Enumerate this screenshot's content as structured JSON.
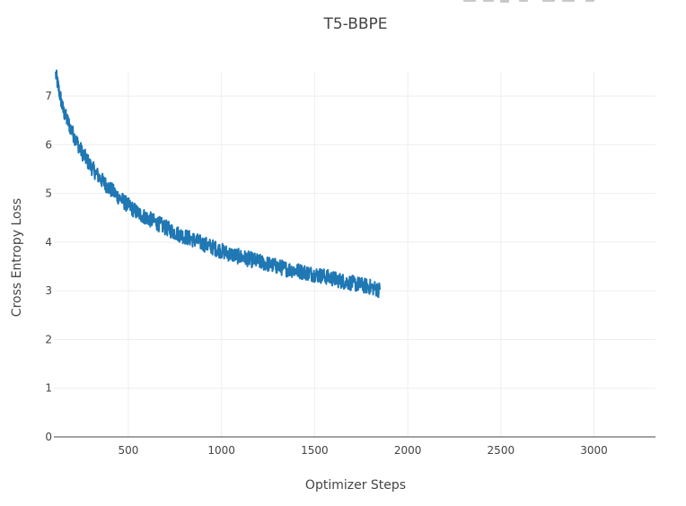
{
  "chart_data": {
    "type": "line",
    "title": "T5-BBPE",
    "xlabel": "Optimizer Steps",
    "ylabel": "Cross Entropy Loss",
    "xlim": [
      100,
      3330
    ],
    "ylim": [
      0,
      7.5
    ],
    "x_ticks": [
      500,
      1000,
      1500,
      2000,
      2500,
      3000
    ],
    "y_ticks": [
      0,
      1,
      2,
      3,
      4,
      5,
      6,
      7
    ],
    "grid": true,
    "legend": "none",
    "series": [
      {
        "color": "#1f77b4",
        "x": [
          110,
          150,
          200,
          250,
          300,
          350,
          400,
          450,
          500,
          550,
          600,
          650,
          700,
          750,
          800,
          850,
          900,
          950,
          1000,
          1050,
          1100,
          1150,
          1200,
          1250,
          1300,
          1350,
          1400,
          1450,
          1500,
          1550,
          1600,
          1650,
          1700,
          1750,
          1800,
          1850
        ],
        "y": [
          7.45,
          6.7,
          6.25,
          5.85,
          5.55,
          5.3,
          5.1,
          4.92,
          4.75,
          4.6,
          4.5,
          4.4,
          4.3,
          4.2,
          4.12,
          4.05,
          3.97,
          3.9,
          3.82,
          3.75,
          3.7,
          3.65,
          3.6,
          3.55,
          3.5,
          3.45,
          3.42,
          3.38,
          3.34,
          3.3,
          3.25,
          3.2,
          3.16,
          3.12,
          3.08,
          3.02
        ]
      }
    ]
  },
  "modebar": {
    "icons": [
      "camera-icon",
      "zoom-icon",
      "pan-icon",
      "zoom-in-icon",
      "zoom-out-icon",
      "autoscale-icon",
      "reset-axes-icon"
    ],
    "color": "#c8c8c8"
  }
}
